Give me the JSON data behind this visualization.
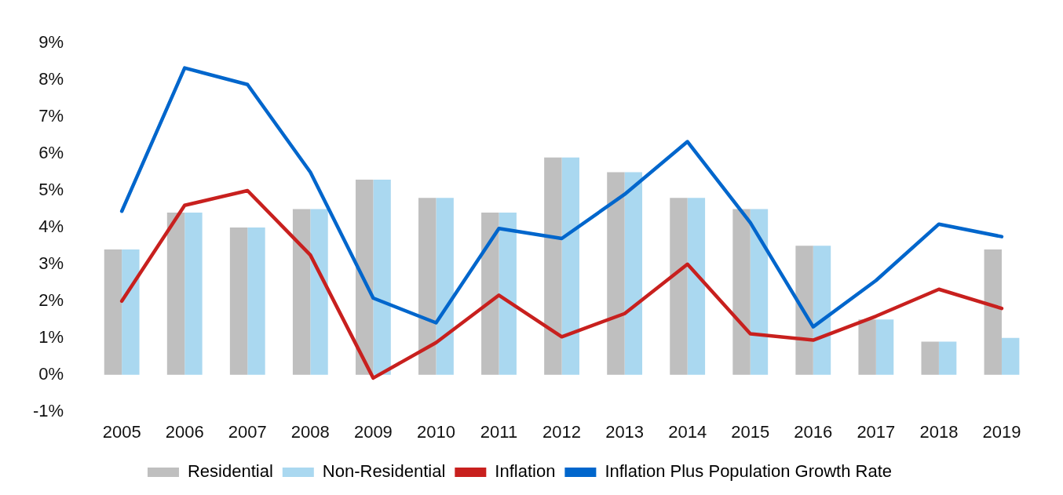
{
  "chart_data": {
    "type": "bar",
    "categories": [
      "2005",
      "2006",
      "2007",
      "2008",
      "2009",
      "2010",
      "2011",
      "2012",
      "2013",
      "2014",
      "2015",
      "2016",
      "2017",
      "2018",
      "2019"
    ],
    "series": [
      {
        "name": "Residential",
        "color": "#bfbfbf",
        "values": [
          3.4,
          4.4,
          4.0,
          4.5,
          5.3,
          4.8,
          4.4,
          5.9,
          5.5,
          4.8,
          4.5,
          3.5,
          1.5,
          0.9,
          3.4
        ]
      },
      {
        "name": "Non-Residential",
        "color": "#aad8f0",
        "values": [
          3.4,
          4.4,
          4.0,
          4.5,
          5.3,
          4.8,
          4.4,
          5.9,
          5.5,
          4.8,
          4.5,
          3.5,
          1.5,
          0.9,
          1.0
        ]
      },
      {
        "name": "Inflation",
        "type": "line",
        "color": "#c8201e",
        "values": [
          2.0,
          4.6,
          5.0,
          3.25,
          -0.09,
          0.87,
          2.16,
          1.03,
          1.66,
          3.0,
          1.11,
          0.94,
          1.59,
          2.32,
          1.8
        ]
      },
      {
        "name": "Inflation Plus Population Growth Rate",
        "type": "line",
        "color": "#0066cc",
        "values": [
          4.44,
          8.33,
          7.88,
          5.5,
          2.08,
          1.41,
          3.97,
          3.7,
          4.9,
          6.33,
          4.13,
          1.3,
          2.56,
          4.09,
          3.75
        ]
      }
    ],
    "ylim": [
      -1,
      9
    ],
    "yticks": [
      {
        "value": -1,
        "label": "-1%"
      },
      {
        "value": 0,
        "label": "0%"
      },
      {
        "value": 1,
        "label": "1%"
      },
      {
        "value": 2,
        "label": "2%"
      },
      {
        "value": 3,
        "label": "3%"
      },
      {
        "value": 4,
        "label": "4%"
      },
      {
        "value": 5,
        "label": "5%"
      },
      {
        "value": 6,
        "label": "6%"
      },
      {
        "value": 7,
        "label": "7%"
      },
      {
        "value": 8,
        "label": "8%"
      },
      {
        "value": 9,
        "label": "9%"
      }
    ],
    "grid": false,
    "legend": "bottom",
    "marker": "none",
    "line_style": "solid"
  }
}
